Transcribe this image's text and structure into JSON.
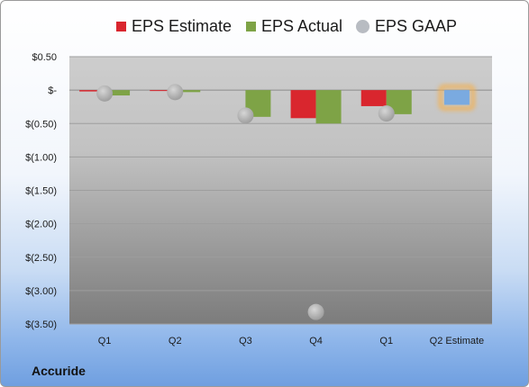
{
  "chart_data": {
    "type": "bar",
    "categories": [
      "Q1",
      "Q2",
      "Q3",
      "Q4",
      "Q1",
      "Q2 Estimate"
    ],
    "series": [
      {
        "name": "EPS Estimate",
        "kind": "bar",
        "color": "#d9262e",
        "values": [
          -0.02,
          -0.01,
          null,
          -0.42,
          -0.24,
          null
        ]
      },
      {
        "name": "EPS Actual",
        "kind": "bar",
        "color": "#7ea346",
        "values": [
          -0.08,
          -0.03,
          -0.4,
          -0.5,
          -0.36,
          null
        ]
      },
      {
        "name": "EPS GAAP",
        "kind": "dot",
        "color": "#a9a9a9",
        "values": [
          -0.05,
          -0.03,
          -0.38,
          -3.32,
          -0.35,
          null
        ]
      },
      {
        "name": "Q2 Estimate",
        "kind": "highlight-bar",
        "color": "#7aaae0",
        "glow": "#f0b25a",
        "values": [
          null,
          null,
          null,
          null,
          null,
          -0.22
        ]
      }
    ],
    "ylim": [
      -3.5,
      0.5
    ],
    "y_ticks": [
      0.5,
      0,
      -0.5,
      -1.0,
      -1.5,
      -2.0,
      -2.5,
      -3.0,
      -3.5
    ],
    "y_tick_labels": [
      "$0.50",
      "$-",
      "$(0.50)",
      "$(1.00)",
      "$(1.50)",
      "$(2.00)",
      "$(2.50)",
      "$(3.00)",
      "$(3.50)"
    ],
    "grid": true,
    "legend_position": "top"
  },
  "legend": [
    {
      "label": "EPS Estimate",
      "color": "#d9262e",
      "shape": "square"
    },
    {
      "label": "EPS Actual",
      "color": "#7ea346",
      "shape": "square"
    },
    {
      "label": "EPS GAAP",
      "color": "#b8bcc2",
      "shape": "circle"
    }
  ],
  "company": "Accuride"
}
